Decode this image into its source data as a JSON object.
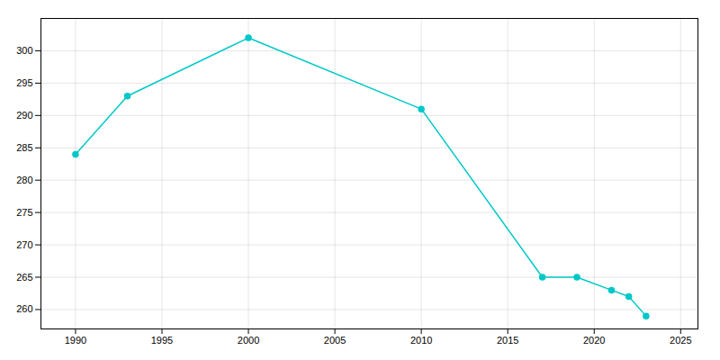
{
  "chart_data": {
    "type": "line",
    "x": [
      1990,
      1993,
      2000,
      2010,
      2017,
      2019,
      2021,
      2022,
      2023
    ],
    "values": [
      284,
      293,
      302,
      291,
      265,
      265,
      263,
      262,
      259
    ],
    "color": "#00c8c8",
    "marker": "circle",
    "xlim": [
      1988,
      2026
    ],
    "ylim": [
      257,
      305
    ],
    "xticks": [
      1990,
      1995,
      2000,
      2005,
      2010,
      2015,
      2020,
      2025
    ],
    "yticks": [
      260,
      265,
      270,
      275,
      280,
      285,
      290,
      295,
      300
    ],
    "grid": true
  }
}
